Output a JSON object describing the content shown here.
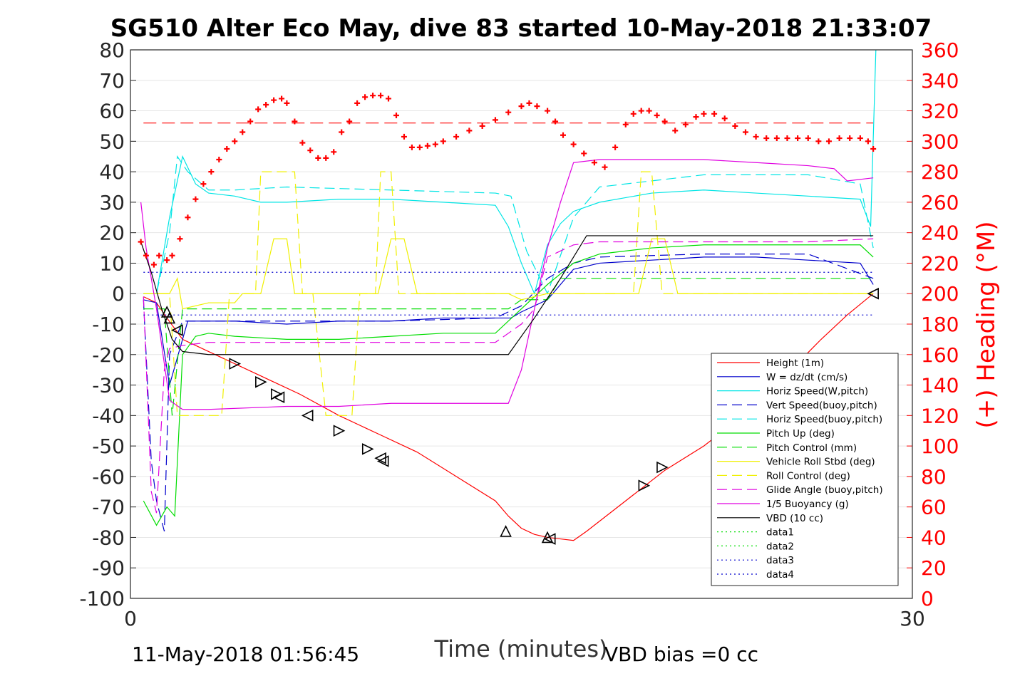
{
  "chart_data": {
    "type": "line",
    "title": "SG510 Alter Eco May, dive 83 started 10-May-2018 21:33:07",
    "xlabel": "Time (minutes)",
    "ylabel_right": "(+) Heading (°M)",
    "footer_left": "11-May-2018 01:56:45",
    "footer_right": "VBD bias =0 cc",
    "xlim": [
      0,
      30
    ],
    "ylim": [
      -100,
      80
    ],
    "ylim_right": [
      0,
      360
    ],
    "x_ticks": [
      "0",
      "30"
    ],
    "y_ticks": [
      "80",
      "70",
      "60",
      "50",
      "40",
      "30",
      "20",
      "10",
      "0",
      "-10",
      "-20",
      "-30",
      "-40",
      "-50",
      "-60",
      "-70",
      "-80",
      "-90",
      "-100"
    ],
    "y_ticks_right": [
      "360",
      "340",
      "320",
      "300",
      "280",
      "260",
      "240",
      "220",
      "200",
      "180",
      "160",
      "140",
      "120",
      "100",
      "80",
      "60",
      "40",
      "20",
      "0"
    ],
    "grid": true,
    "legend_position": "lower-right",
    "colors": {
      "red": "#ff0000",
      "blue": "#0000cc",
      "cyan": "#00e5e5",
      "green": "#00dd00",
      "yellow": "#f0f000",
      "magenta": "#e000e0",
      "black": "#000000"
    },
    "series": [
      {
        "name": "Height (1m)",
        "color": "#ff0000",
        "style": "solid",
        "x": [
          0.5,
          1.0,
          1.4,
          2.0,
          3.5,
          5.0,
          6.5,
          8.0,
          9.5,
          11.0,
          12.5,
          14.0,
          14.5,
          15.0,
          15.5,
          16.0,
          16.5,
          17.0,
          17.5,
          19.0,
          20.5,
          22.0,
          23.5,
          25.0,
          26.5,
          27.5,
          28.5
        ],
        "y": [
          -1,
          -3,
          -8,
          -15,
          -21,
          -27,
          -33,
          -40,
          -46,
          -52,
          -60,
          -68,
          -73,
          -77,
          -79,
          -80,
          -80.5,
          -81,
          -78,
          -68,
          -58,
          -50,
          -40,
          -28,
          -15,
          -7,
          0
        ]
      },
      {
        "name": "W = dz/dt (cm/s)",
        "color": "#0000cc",
        "style": "solid",
        "x": [
          0.5,
          1.0,
          1.5,
          2.2,
          3.0,
          4.0,
          6.0,
          8.0,
          10.0,
          12.0,
          14.0,
          14.6,
          15.0,
          16.0,
          17.0,
          17.5,
          18.0,
          20.0,
          22.0,
          24.0,
          26.0,
          28.0,
          28.5
        ],
        "y": [
          -2,
          -3,
          -30,
          -9,
          -9,
          -9,
          -10,
          -9,
          -9,
          -8,
          -8,
          -8,
          -6,
          -2,
          8,
          9,
          10,
          11,
          12,
          12,
          11,
          10,
          3
        ]
      },
      {
        "name": "Horiz Speed(W,pitch)",
        "color": "#00e5e5",
        "style": "solid",
        "x": [
          0.5,
          1.0,
          1.5,
          2.0,
          2.5,
          3.0,
          4.0,
          5.0,
          6.0,
          8.0,
          10.0,
          12.0,
          14.0,
          14.5,
          15.0,
          15.5,
          16.0,
          16.5,
          17.0,
          18.0,
          20.0,
          22.0,
          24.0,
          26.0,
          28.0,
          28.4,
          28.6
        ],
        "y": [
          0,
          0,
          25,
          45,
          36,
          33,
          32,
          30,
          30,
          31,
          31,
          30,
          29,
          22,
          10,
          0,
          16,
          23,
          27,
          30,
          33,
          34,
          33,
          32,
          31,
          22,
          80
        ]
      },
      {
        "name": "Vert Speed(buoy,pitch)",
        "color": "#0000cc",
        "style": "dashed",
        "x": [
          0.5,
          0.8,
          1.0,
          1.3,
          1.5,
          2.0,
          3.0,
          6.0,
          10.0,
          14.0,
          15.0,
          16.0,
          17.0,
          18.0,
          22.0,
          26.0,
          28.5
        ],
        "y": [
          -2,
          -55,
          -68,
          -78,
          -20,
          -9,
          -9,
          -9,
          -9,
          -8,
          -4,
          5,
          10,
          12,
          13,
          13,
          5
        ]
      },
      {
        "name": "Horiz Speed(buoy,pitch)",
        "color": "#00e5e5",
        "style": "dashed",
        "x": [
          0.5,
          1.0,
          1.5,
          1.8,
          2.2,
          3.0,
          4.0,
          6.0,
          10.0,
          14.0,
          14.6,
          15.2,
          16.0,
          17.0,
          18.0,
          22.0,
          26.0,
          28.0,
          28.5
        ],
        "y": [
          0,
          0,
          20,
          45,
          40,
          34,
          34,
          35,
          34,
          33,
          32,
          14,
          0,
          25,
          35,
          39,
          39,
          36,
          15
        ]
      },
      {
        "name": "Pitch Up (deg)",
        "color": "#00dd00",
        "style": "solid",
        "x": [
          0.5,
          1.0,
          1.4,
          1.7,
          2.0,
          2.5,
          3.0,
          4.0,
          6.0,
          8.0,
          10.0,
          12.0,
          14.0,
          15.0,
          16.0,
          17.0,
          18.0,
          20.0,
          22.0,
          24.0,
          26.0,
          28.0,
          28.5
        ],
        "y": [
          -68,
          -76,
          -70,
          -73,
          -20,
          -14,
          -13,
          -14,
          -15,
          -15,
          -14,
          -13,
          -13,
          -5,
          3,
          10,
          13,
          15,
          16,
          16,
          16,
          16,
          12
        ]
      },
      {
        "name": "Pitch Control (mm)",
        "color": "#00dd00",
        "style": "dashed",
        "x": [
          0.5,
          1.3,
          1.6,
          2.0,
          3.0,
          8.0,
          14.0,
          14.5,
          15.0,
          16.0,
          16.5,
          17.0,
          20.0,
          28.5
        ],
        "y": [
          -5,
          -5,
          -40,
          -5,
          -5,
          -5,
          -5,
          -5,
          -2,
          -2,
          5,
          5,
          5,
          5
        ]
      },
      {
        "name": "Vehicle Roll Stbd (deg)",
        "color": "#f0f000",
        "style": "solid",
        "x": [
          0.5,
          1.5,
          1.8,
          2.0,
          3.0,
          4.0,
          4.3,
          5.0,
          5.5,
          6.0,
          6.3,
          7.0,
          9.0,
          9.5,
          10.0,
          10.5,
          11.0,
          14.0,
          14.5,
          15.0,
          16.0,
          19.0,
          19.5,
          20.0,
          20.5,
          21.0,
          28.5
        ],
        "y": [
          0,
          0,
          5,
          -5,
          -3,
          -3,
          0,
          0,
          18,
          18,
          0,
          0,
          0,
          0,
          18,
          18,
          0,
          0,
          0,
          -2,
          0,
          0,
          0,
          18,
          18,
          0,
          0
        ]
      },
      {
        "name": "Roll Control (deg)",
        "color": "#f0f000",
        "style": "dashed",
        "x": [
          0.5,
          1.5,
          1.8,
          2.0,
          3.5,
          3.8,
          4.8,
          5.0,
          6.3,
          6.6,
          7.0,
          7.5,
          8.5,
          8.8,
          9.4,
          9.6,
          10.0,
          10.3,
          11.0,
          14.0,
          15.0,
          19.3,
          19.6,
          20.0,
          20.4,
          20.8,
          28.5
        ],
        "y": [
          0,
          0,
          -40,
          -40,
          -40,
          0,
          0,
          40,
          40,
          0,
          0,
          -40,
          -40,
          0,
          0,
          40,
          40,
          0,
          0,
          0,
          0,
          0,
          40,
          40,
          0,
          0,
          0
        ]
      },
      {
        "name": "Glide Angle (buoy,pitch)",
        "color": "#e000e0",
        "style": "dashed",
        "x": [
          0.5,
          0.8,
          1.0,
          1.3,
          1.5,
          2.0,
          3.0,
          6.0,
          10.0,
          14.0,
          15.0,
          15.5,
          16.0,
          17.0,
          18.0,
          22.0,
          26.0,
          28.5
        ],
        "y": [
          -1,
          -65,
          -72,
          -25,
          -18,
          -17,
          -16,
          -16,
          -16,
          -16,
          -10,
          -5,
          12,
          16,
          17,
          17,
          17,
          18
        ]
      },
      {
        "name": "1/5 Buoyancy (g)",
        "color": "#e000e0",
        "style": "solid",
        "x": [
          0.4,
          0.6,
          1.0,
          1.5,
          2.0,
          3.0,
          6.0,
          8.0,
          10.0,
          14.0,
          14.5,
          15.0,
          15.5,
          16.0,
          16.5,
          17.0,
          18.0,
          22.0,
          24.0,
          26.0,
          27.0,
          27.5,
          28.5
        ],
        "y": [
          30,
          15,
          -5,
          -35,
          -38,
          -38,
          -37,
          -37,
          -36,
          -36,
          -36,
          -25,
          -5,
          15,
          30,
          43,
          44,
          44,
          43,
          42,
          41,
          37,
          38
        ]
      },
      {
        "name": "VBD (10 cc)",
        "color": "#000000",
        "style": "solid",
        "x": [
          0.4,
          0.8,
          1.2,
          1.6,
          2.0,
          3.0,
          8.0,
          14.0,
          14.5,
          15.5,
          16.5,
          17.0,
          17.5,
          28.5
        ],
        "y": [
          17,
          7,
          -5,
          -15,
          -19,
          -20,
          -20,
          -20,
          -20,
          -8,
          5,
          12,
          19,
          19
        ]
      },
      {
        "name": "data1",
        "color": "#00dd00",
        "style": "dotted"
      },
      {
        "name": "data2",
        "color": "#00dd00",
        "style": "dotted"
      },
      {
        "name": "data3",
        "color": "#0000cc",
        "style": "dotted",
        "x": [
          0.5,
          28.5
        ],
        "y": [
          7,
          7
        ]
      },
      {
        "name": "data4",
        "color": "#0000cc",
        "style": "dotted",
        "x": [
          0.5,
          28.5
        ],
        "y": [
          -7,
          -7
        ]
      }
    ],
    "heading": {
      "name": "(+) Heading (°M)",
      "color": "#ff0000",
      "marker": "+",
      "axis": "right",
      "x": [
        0.4,
        0.6,
        0.9,
        1.1,
        1.4,
        1.6,
        1.9,
        2.2,
        2.5,
        2.8,
        3.1,
        3.4,
        3.7,
        4.0,
        4.3,
        4.6,
        4.9,
        5.2,
        5.5,
        5.8,
        6.0,
        6.3,
        6.6,
        6.9,
        7.2,
        7.5,
        7.8,
        8.1,
        8.4,
        8.7,
        9.0,
        9.3,
        9.6,
        9.9,
        10.2,
        10.5,
        10.8,
        11.1,
        11.4,
        11.7,
        12.0,
        12.5,
        13.0,
        13.5,
        14.0,
        14.5,
        15.0,
        15.3,
        15.6,
        16.0,
        16.3,
        16.6,
        17.0,
        17.4,
        17.8,
        18.2,
        18.6,
        19.0,
        19.3,
        19.6,
        19.9,
        20.2,
        20.5,
        20.9,
        21.3,
        21.7,
        22.0,
        22.4,
        22.8,
        23.2,
        23.6,
        24.0,
        24.4,
        24.8,
        25.2,
        25.6,
        26.0,
        26.4,
        26.8,
        27.2,
        27.6,
        28.0,
        28.3,
        28.5
      ],
      "y": [
        234,
        225,
        219,
        225,
        222,
        225,
        236,
        250,
        262,
        272,
        280,
        288,
        295,
        300,
        306,
        313,
        321,
        324,
        327,
        328,
        325,
        313,
        299,
        294,
        289,
        289,
        293,
        306,
        313,
        325,
        329,
        330,
        330,
        328,
        317,
        303,
        296,
        296,
        297,
        298,
        300,
        303,
        307,
        310,
        314,
        319,
        323,
        325,
        323,
        320,
        313,
        304,
        298,
        292,
        286,
        283,
        296,
        311,
        318,
        320,
        320,
        317,
        313,
        307,
        311,
        316,
        318,
        318,
        315,
        310,
        306,
        303,
        302,
        302,
        302,
        302,
        302,
        300,
        300,
        302,
        302,
        302,
        300,
        295
      ]
    },
    "markers": {
      "shape": "triangle",
      "color": "#000000",
      "points": [
        {
          "x": 1.4,
          "y": -6,
          "dir": "up"
        },
        {
          "x": 1.5,
          "y": -8,
          "dir": "up"
        },
        {
          "x": 1.8,
          "y": -12,
          "dir": "left"
        },
        {
          "x": 4.0,
          "y": -23,
          "dir": "right"
        },
        {
          "x": 5.0,
          "y": -29,
          "dir": "right"
        },
        {
          "x": 5.6,
          "y": -33,
          "dir": "right"
        },
        {
          "x": 5.7,
          "y": -34,
          "dir": "left"
        },
        {
          "x": 6.8,
          "y": -40,
          "dir": "left"
        },
        {
          "x": 8.0,
          "y": -45,
          "dir": "right"
        },
        {
          "x": 9.1,
          "y": -51,
          "dir": "right"
        },
        {
          "x": 9.6,
          "y": -54,
          "dir": "left"
        },
        {
          "x": 9.7,
          "y": -55,
          "dir": "left"
        },
        {
          "x": 14.4,
          "y": -78,
          "dir": "up"
        },
        {
          "x": 16.0,
          "y": -80,
          "dir": "up"
        },
        {
          "x": 16.1,
          "y": -80.5,
          "dir": "left"
        },
        {
          "x": 19.7,
          "y": -63,
          "dir": "right"
        },
        {
          "x": 20.4,
          "y": -57,
          "dir": "right"
        },
        {
          "x": 28.5,
          "y": 0,
          "dir": "left"
        }
      ]
    },
    "ref_lines": [
      {
        "axis": "right",
        "value": 312,
        "color": "#ff0000",
        "style": "dashed"
      }
    ],
    "legend": [
      "Height (1m)",
      "W = dz/dt (cm/s)",
      "Horiz Speed(W,pitch)",
      "Vert Speed(buoy,pitch)",
      "Horiz Speed(buoy,pitch)",
      "Pitch Up (deg)",
      "Pitch Control (mm)",
      "Vehicle Roll Stbd (deg)",
      "Roll Control (deg)",
      "Glide Angle (buoy,pitch)",
      "1/5 Buoyancy (g)",
      "VBD (10 cc)",
      "data1",
      "data2",
      "data3",
      "data4"
    ]
  }
}
